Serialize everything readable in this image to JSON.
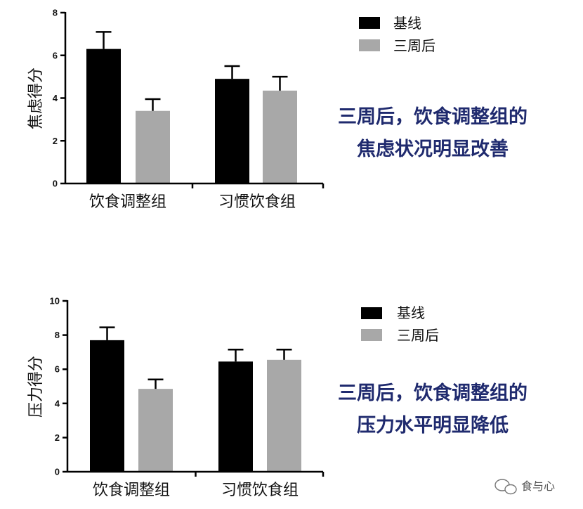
{
  "chart_data": [
    {
      "type": "bar",
      "categories": [
        "饮食调整组",
        "习惯饮食组"
      ],
      "series": [
        {
          "name": "基线",
          "values": [
            6.3,
            4.9
          ],
          "errors": [
            0.8,
            0.6
          ]
        },
        {
          "name": "三周后",
          "values": [
            3.4,
            4.35
          ],
          "errors": [
            0.55,
            0.65
          ]
        }
      ],
      "ylabel": "焦虑得分",
      "ylim": [
        0,
        8
      ],
      "yticks": [
        "0",
        "2",
        "4",
        "6",
        "8"
      ],
      "legend_position": "top-right",
      "annotation": [
        "三周后，饮食调整组的",
        "焦虑状况明显改善"
      ],
      "colors": [
        "#000000",
        "#a8a8a8"
      ],
      "grid": false
    },
    {
      "type": "bar",
      "categories": [
        "饮食调整组",
        "习惯饮食组"
      ],
      "series": [
        {
          "name": "基线",
          "values": [
            7.7,
            6.45
          ],
          "errors": [
            0.75,
            0.7
          ]
        },
        {
          "name": "三周后",
          "values": [
            4.85,
            6.55
          ],
          "errors": [
            0.55,
            0.6
          ]
        }
      ],
      "ylabel": "压力得分",
      "ylim": [
        0,
        10
      ],
      "yticks": [
        "0",
        "2",
        "4",
        "6",
        "8",
        "10"
      ],
      "legend_position": "top-right",
      "annotation": [
        "三周后，饮食调整组的",
        "压力水平明显降低"
      ],
      "colors": [
        "#000000",
        "#a8a8a8"
      ],
      "grid": false
    }
  ],
  "watermark": {
    "text": "食与心",
    "icon": "wechat-icon"
  }
}
